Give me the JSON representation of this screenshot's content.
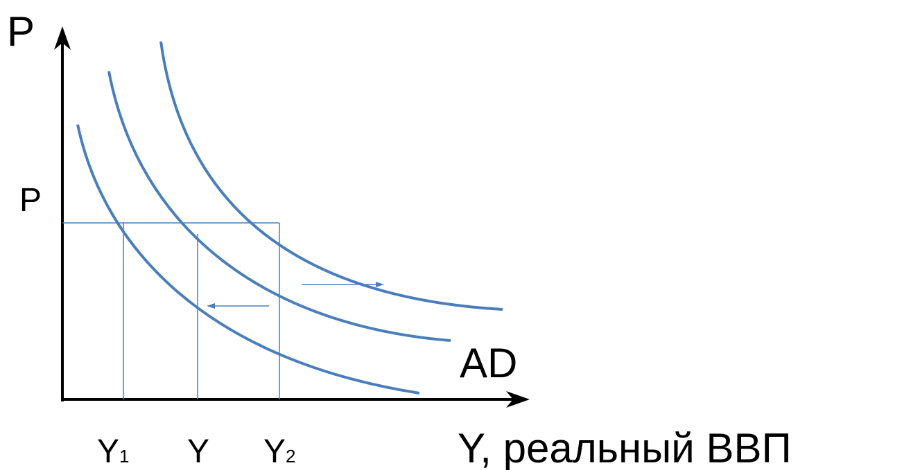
{
  "labels": {
    "y_axis": "P",
    "price_level": "P",
    "curve": "AD",
    "x_axis": "Y, реальный ВВП",
    "y1": {
      "base": "Y",
      "sub": "1"
    },
    "y": "Y",
    "y2": {
      "base": "Y",
      "sub": "2"
    }
  }
}
